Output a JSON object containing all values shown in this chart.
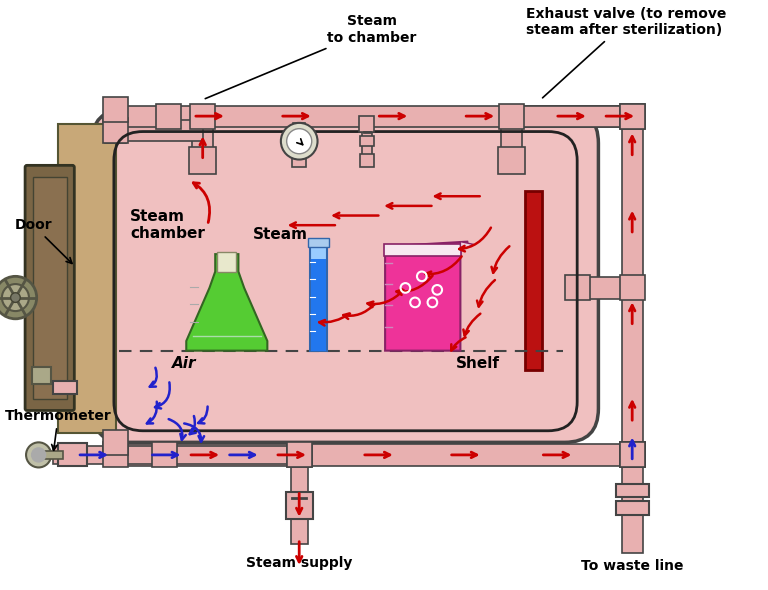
{
  "bg_color": "#ffffff",
  "pipe_color": "#e8b0b0",
  "pipe_edge_color": "#444444",
  "chamber_outer_color": "#f0c0c0",
  "door_color": "#7a6545",
  "red_arrow_color": "#cc0000",
  "blue_arrow_color": "#2222cc",
  "heater_color": "#bb1111",
  "labels": {
    "steam_to_chamber": "Steam\nto chamber",
    "exhaust_valve": "Exhaust valve (to remove\nsteam after sterilization)",
    "door": "Door",
    "steam_chamber": "Steam\nchamber",
    "steam": "Steam",
    "air": "Air",
    "shelf": "Shelf",
    "thermometer": "Thermometer",
    "steam_supply": "Steam supply",
    "to_waste": "To waste line"
  }
}
